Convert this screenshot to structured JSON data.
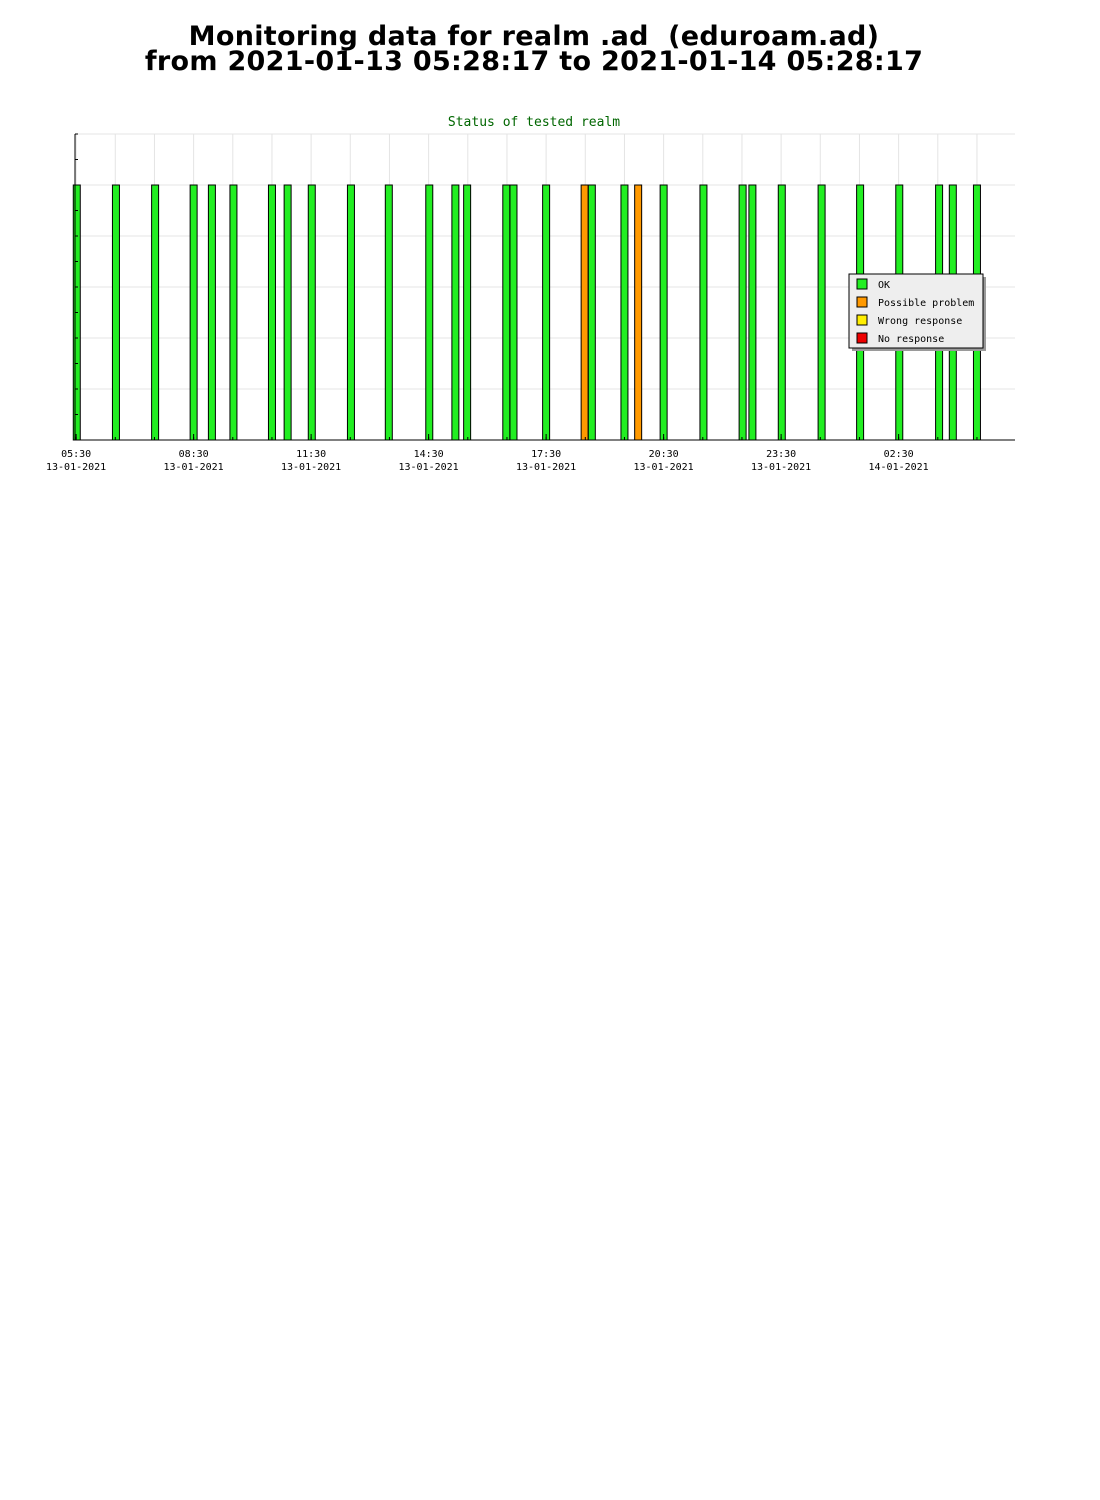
{
  "page": {
    "title_line1": "Monitoring data for realm .ad  (eduroam.ad)",
    "title_line2": "from 2021-01-13 05:28:17 to 2021-01-14 05:28:17"
  },
  "chart_data": {
    "type": "bar",
    "title": "Status of tested realm",
    "xlabel": "",
    "ylabel": "",
    "x_range": [
      "2021-01-13 05:28:17",
      "2021-01-14 05:28:17"
    ],
    "x_ticks": [
      {
        "time": "05:30",
        "date": "13-01-2021"
      },
      {
        "time": "08:30",
        "date": "13-01-2021"
      },
      {
        "time": "11:30",
        "date": "13-01-2021"
      },
      {
        "time": "14:30",
        "date": "13-01-2021"
      },
      {
        "time": "17:30",
        "date": "13-01-2021"
      },
      {
        "time": "20:30",
        "date": "13-01-2021"
      },
      {
        "time": "23:30",
        "date": "13-01-2021"
      },
      {
        "time": "02:30",
        "date": "14-01-2021"
      }
    ],
    "grid": true,
    "legend_position": "right",
    "legend": [
      {
        "label": "OK",
        "color": "#22ee22"
      },
      {
        "label": "Possible problem",
        "color": "#ff9900"
      },
      {
        "label": "Wrong response",
        "color": "#ffee00"
      },
      {
        "label": "No response",
        "color": "#ee0000"
      }
    ],
    "tests": [
      {
        "time": "2021-01-13 05:31",
        "status": "OK"
      },
      {
        "time": "2021-01-13 06:31",
        "status": "OK"
      },
      {
        "time": "2021-01-13 07:31",
        "status": "OK"
      },
      {
        "time": "2021-01-13 08:30",
        "status": "OK"
      },
      {
        "time": "2021-01-13 08:58",
        "status": "OK"
      },
      {
        "time": "2021-01-13 09:31",
        "status": "OK"
      },
      {
        "time": "2021-01-13 10:30",
        "status": "OK"
      },
      {
        "time": "2021-01-13 10:54",
        "status": "OK"
      },
      {
        "time": "2021-01-13 11:31",
        "status": "OK"
      },
      {
        "time": "2021-01-13 12:31",
        "status": "OK"
      },
      {
        "time": "2021-01-13 13:29",
        "status": "OK"
      },
      {
        "time": "2021-01-13 14:31",
        "status": "OK"
      },
      {
        "time": "2021-01-13 15:11",
        "status": "OK"
      },
      {
        "time": "2021-01-13 15:29",
        "status": "OK"
      },
      {
        "time": "2021-01-13 16:29",
        "status": "OK"
      },
      {
        "time": "2021-01-13 16:40",
        "status": "OK"
      },
      {
        "time": "2021-01-13 17:30",
        "status": "OK"
      },
      {
        "time": "2021-01-13 18:29",
        "status": "Possible problem"
      },
      {
        "time": "2021-01-13 18:40",
        "status": "OK"
      },
      {
        "time": "2021-01-13 19:30",
        "status": "OK"
      },
      {
        "time": "2021-01-13 19:51",
        "status": "Possible problem"
      },
      {
        "time": "2021-01-13 20:30",
        "status": "OK"
      },
      {
        "time": "2021-01-13 21:31",
        "status": "OK"
      },
      {
        "time": "2021-01-13 22:31",
        "status": "OK"
      },
      {
        "time": "2021-01-13 22:46",
        "status": "OK"
      },
      {
        "time": "2021-01-13 23:31",
        "status": "OK"
      },
      {
        "time": "2021-01-14 00:32",
        "status": "OK"
      },
      {
        "time": "2021-01-14 01:31",
        "status": "OK"
      },
      {
        "time": "2021-01-14 02:31",
        "status": "OK"
      },
      {
        "time": "2021-01-14 03:32",
        "status": "OK"
      },
      {
        "time": "2021-01-14 03:53",
        "status": "OK"
      },
      {
        "time": "2021-01-14 04:30",
        "status": "OK"
      }
    ]
  }
}
